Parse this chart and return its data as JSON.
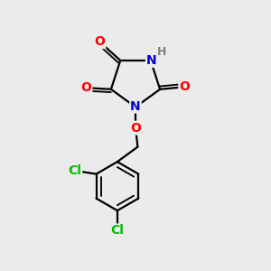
{
  "bg_color": "#ebebeb",
  "atom_colors": {
    "C": "#000000",
    "N": "#0000cc",
    "O": "#ff0000",
    "Cl": "#00bb00",
    "H": "#808080"
  },
  "bond_color": "#000000",
  "bond_width": 1.6,
  "font_size_atom": 10,
  "font_size_H": 9
}
